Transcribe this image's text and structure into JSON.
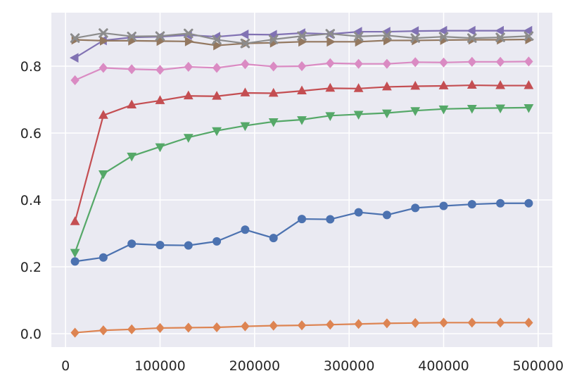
{
  "chart_data": {
    "type": "line",
    "title": "",
    "xlabel": "",
    "ylabel": "",
    "xlim": [
      -15000,
      515000
    ],
    "ylim": [
      -0.04,
      0.96
    ],
    "grid": true,
    "xticks": [
      0,
      100000,
      200000,
      300000,
      400000,
      500000
    ],
    "xtick_labels": [
      "0",
      "100000",
      "200000",
      "300000",
      "400000",
      "500000"
    ],
    "yticks": [
      0.0,
      0.2,
      0.4,
      0.6,
      0.8
    ],
    "ytick_labels": [
      "0.0",
      "0.2",
      "0.4",
      "0.6",
      "0.8"
    ],
    "x": [
      10000,
      40000,
      70000,
      100000,
      130000,
      160000,
      190000,
      220000,
      250000,
      280000,
      310000,
      340000,
      370000,
      400000,
      430000,
      460000,
      490000
    ],
    "series": [
      {
        "color": "#4c72b0",
        "marker": "circle",
        "values": [
          0.216,
          0.228,
          0.269,
          0.265,
          0.264,
          0.276,
          0.311,
          0.286,
          0.343,
          0.342,
          0.363,
          0.355,
          0.376,
          0.382,
          0.387,
          0.39,
          0.39
        ]
      },
      {
        "color": "#dd8452",
        "marker": "diamond",
        "values": [
          0.003,
          0.01,
          0.013,
          0.017,
          0.018,
          0.019,
          0.022,
          0.024,
          0.025,
          0.027,
          0.029,
          0.031,
          0.032,
          0.033,
          0.033,
          0.033,
          0.033
        ]
      },
      {
        "color": "#55a868",
        "marker": "triangle-down",
        "values": [
          0.243,
          0.478,
          0.531,
          0.559,
          0.587,
          0.607,
          0.622,
          0.634,
          0.64,
          0.652,
          0.656,
          0.66,
          0.667,
          0.672,
          0.674,
          0.675,
          0.676
        ]
      },
      {
        "color": "#c44e52",
        "marker": "triangle-up",
        "values": [
          0.335,
          0.653,
          0.684,
          0.697,
          0.711,
          0.71,
          0.72,
          0.719,
          0.726,
          0.734,
          0.733,
          0.738,
          0.74,
          0.741,
          0.743,
          0.742,
          0.742
        ]
      },
      {
        "color": "#8172b3",
        "marker": "triangle-left",
        "values": [
          0.825,
          0.877,
          0.886,
          0.888,
          0.893,
          0.888,
          0.895,
          0.894,
          0.899,
          0.896,
          0.903,
          0.903,
          0.905,
          0.906,
          0.906,
          0.906,
          0.906
        ]
      },
      {
        "color": "#937860",
        "marker": "triangle-right",
        "values": [
          0.879,
          0.876,
          0.876,
          0.875,
          0.874,
          0.862,
          0.868,
          0.87,
          0.873,
          0.873,
          0.873,
          0.877,
          0.877,
          0.878,
          0.879,
          0.879,
          0.88
        ]
      },
      {
        "color": "#da8bc3",
        "marker": "diamond",
        "values": [
          0.758,
          0.795,
          0.791,
          0.789,
          0.798,
          0.795,
          0.806,
          0.799,
          0.8,
          0.809,
          0.807,
          0.807,
          0.812,
          0.811,
          0.813,
          0.813,
          0.814
        ]
      },
      {
        "color": "#8c8c8c",
        "marker": "x",
        "values": [
          0.884,
          0.899,
          0.889,
          0.89,
          0.898,
          0.879,
          0.868,
          0.88,
          0.89,
          0.897,
          0.889,
          0.892,
          0.884,
          0.888,
          0.884,
          0.886,
          0.89
        ]
      }
    ]
  }
}
